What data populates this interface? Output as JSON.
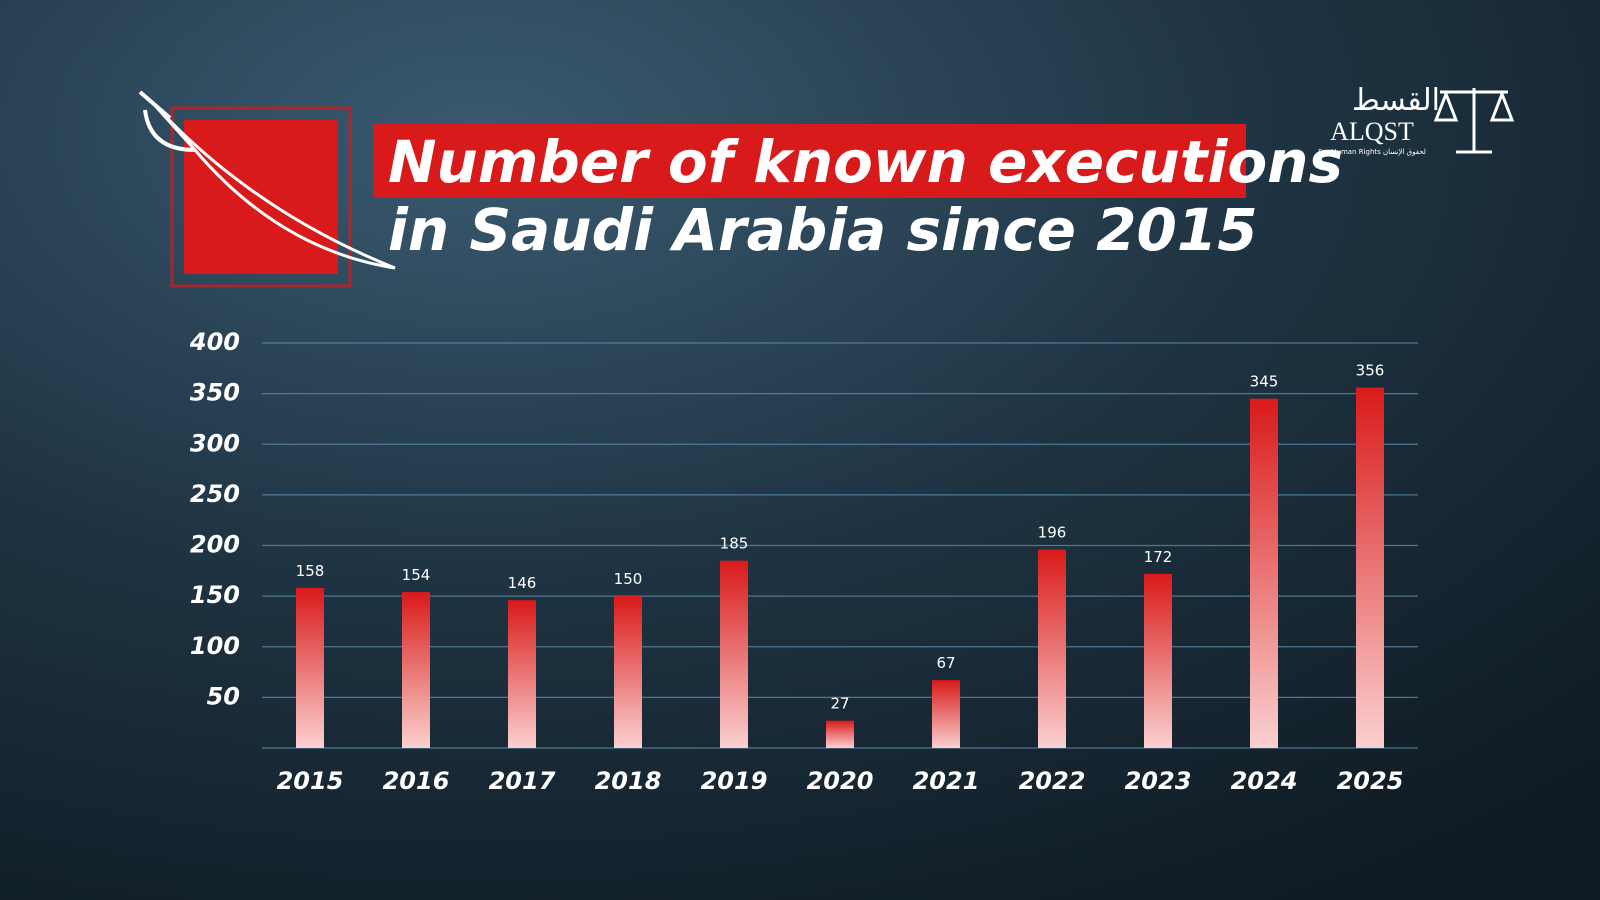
{
  "chart_data": {
    "type": "bar",
    "title": "Number of known executions",
    "subtitle": "in Saudi Arabia since 2015",
    "categories": [
      "2015",
      "2016",
      "2017",
      "2018",
      "2019",
      "2020",
      "2021",
      "2022",
      "2023",
      "2024",
      "2025"
    ],
    "values": [
      158,
      154,
      146,
      150,
      185,
      27,
      67,
      196,
      172,
      345,
      356
    ],
    "color": "#d91a1a",
    "ylim": [
      0,
      400
    ],
    "yticks": [
      50,
      100,
      150,
      200,
      250,
      300,
      350,
      400
    ],
    "grid": true
  },
  "logo": {
    "arabic": "القسط",
    "name": "ALQST",
    "tagline": "For Human Rights لحقوق الإنسان"
  }
}
